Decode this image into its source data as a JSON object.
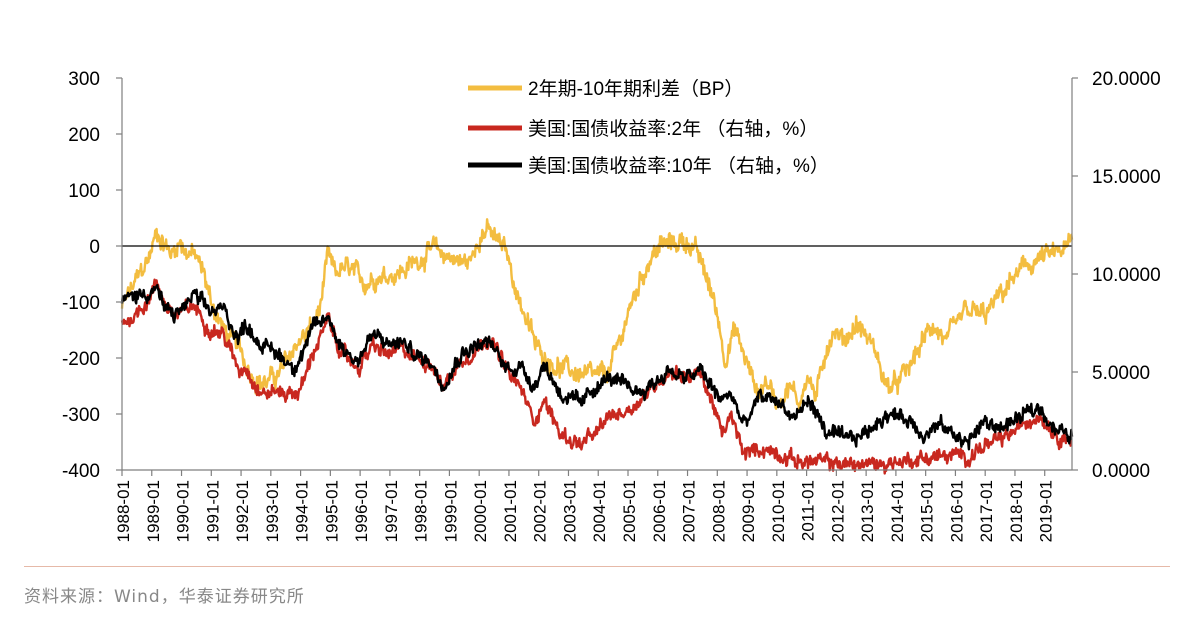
{
  "colors": {
    "spread": "#f3bd40",
    "us2y": "#c8281f",
    "us10y": "#000000",
    "axis": "#7f7f7f",
    "rule": "#e6b9a8",
    "source": "#888888"
  },
  "chart_data": {
    "type": "line",
    "title": "",
    "xlabel": "",
    "ylabel_left": "",
    "ylabel_right": "",
    "grid": false,
    "legend_position": "top-center",
    "x_tick_labels": [
      "1988-01",
      "1989-01",
      "1990-01",
      "1991-01",
      "1992-01",
      "1993-01",
      "1994-01",
      "1995-01",
      "1996-01",
      "1997-01",
      "1998-01",
      "1999-01",
      "2000-01",
      "2001-01",
      "2002-01",
      "2003-01",
      "2004-01",
      "2005-01",
      "2006-01",
      "2007-01",
      "2008-01",
      "2009-01",
      "2010-01",
      "2011-01",
      "2012-01",
      "2013-01",
      "2014-01",
      "2015-01",
      "2016-01",
      "2017-01",
      "2018-01",
      "2019-01"
    ],
    "xlim": [
      "1988-01",
      "2019-12"
    ],
    "left_axis": {
      "ylim": [
        -400,
        300
      ],
      "tick_labels": [
        "300",
        "200",
        "100",
        "0",
        "-100",
        "-200",
        "-300",
        "-400"
      ],
      "tick_values": [
        300,
        200,
        100,
        0,
        -100,
        -200,
        -300,
        -400
      ]
    },
    "right_axis": {
      "ylim": [
        0,
        20
      ],
      "tick_labels": [
        "20.0000",
        "15.0000",
        "10.0000",
        "5.0000",
        "0.0000"
      ],
      "tick_values": [
        20,
        15,
        10,
        5,
        0
      ]
    },
    "series": [
      {
        "name": "2年期-10年期利差（BP）",
        "axis": "left",
        "color": "#f3bd40",
        "points": [
          [
            "1988-01",
            -110
          ],
          [
            "1988-07",
            -60
          ],
          [
            "1988-12",
            -20
          ],
          [
            "1989-03",
            25
          ],
          [
            "1989-06",
            5
          ],
          [
            "1989-09",
            -15
          ],
          [
            "1989-12",
            10
          ],
          [
            "1990-03",
            -10
          ],
          [
            "1990-06",
            -15
          ],
          [
            "1990-10",
            -50
          ],
          [
            "1991-01",
            -100
          ],
          [
            "1991-06",
            -150
          ],
          [
            "1991-12",
            -180
          ],
          [
            "1992-04",
            -220
          ],
          [
            "1992-08",
            -240
          ],
          [
            "1992-11",
            -245
          ],
          [
            "1993-02",
            -235
          ],
          [
            "1993-05",
            -225
          ],
          [
            "1993-08",
            -200
          ],
          [
            "1993-12",
            -170
          ],
          [
            "1994-03",
            -160
          ],
          [
            "1994-06",
            -140
          ],
          [
            "1994-09",
            -110
          ],
          [
            "1994-12",
            -20
          ],
          [
            "1995-03",
            -50
          ],
          [
            "1995-06",
            -40
          ],
          [
            "1995-10",
            -45
          ],
          [
            "1996-01",
            -60
          ],
          [
            "1996-03",
            -65
          ],
          [
            "1996-07",
            -55
          ],
          [
            "1996-12",
            -50
          ],
          [
            "1997-06",
            -45
          ],
          [
            "1997-12",
            -25
          ],
          [
            "1998-06",
            -5
          ],
          [
            "1998-10",
            -15
          ],
          [
            "1999-02",
            -20
          ],
          [
            "1999-06",
            -30
          ],
          [
            "1999-10",
            -25
          ],
          [
            "2000-01",
            20
          ],
          [
            "2000-04",
            30
          ],
          [
            "2000-08",
            10
          ],
          [
            "2000-12",
            -10
          ],
          [
            "2001-04",
            -80
          ],
          [
            "2001-08",
            -130
          ],
          [
            "2001-12",
            -180
          ],
          [
            "2002-04",
            -200
          ],
          [
            "2002-09",
            -215
          ],
          [
            "2003-03",
            -225
          ],
          [
            "2003-08",
            -230
          ],
          [
            "2003-12",
            -235
          ],
          [
            "2004-05",
            -225
          ],
          [
            "2004-09",
            -180
          ],
          [
            "2005-01",
            -120
          ],
          [
            "2005-06",
            -60
          ],
          [
            "2005-10",
            -20
          ],
          [
            "2006-02",
            0
          ],
          [
            "2006-08",
            5
          ],
          [
            "2006-12",
            10
          ],
          [
            "2007-04",
            -5
          ],
          [
            "2007-09",
            -60
          ],
          [
            "2008-01",
            -120
          ],
          [
            "2008-04",
            -200
          ],
          [
            "2008-08",
            -150
          ],
          [
            "2009-01",
            -210
          ],
          [
            "2009-05",
            -260
          ],
          [
            "2009-09",
            -240
          ],
          [
            "2010-01",
            -280
          ],
          [
            "2010-06",
            -250
          ],
          [
            "2010-10",
            -280
          ],
          [
            "2011-01",
            -230
          ],
          [
            "2011-05",
            -270
          ],
          [
            "2011-09",
            -180
          ],
          [
            "2011-12",
            -150
          ],
          [
            "2012-04",
            -170
          ],
          [
            "2012-09",
            -140
          ],
          [
            "2013-01",
            -160
          ],
          [
            "2013-05",
            -190
          ],
          [
            "2013-09",
            -250
          ],
          [
            "2014-01",
            -250
          ],
          [
            "2014-06",
            -220
          ],
          [
            "2014-12",
            -170
          ],
          [
            "2015-04",
            -140
          ],
          [
            "2015-09",
            -170
          ],
          [
            "2016-01",
            -150
          ],
          [
            "2016-05",
            -115
          ],
          [
            "2016-09",
            -120
          ],
          [
            "2017-01",
            -125
          ],
          [
            "2017-06",
            -95
          ],
          [
            "2017-12",
            -60
          ],
          [
            "2018-06",
            -35
          ],
          [
            "2018-12",
            -20
          ],
          [
            "2019-06",
            -15
          ],
          [
            "2019-12",
            5
          ]
        ]
      },
      {
        "name": "美国:国债收益率:2年 （右轴，%）",
        "axis": "right",
        "color": "#c8281f",
        "points": [
          [
            "1988-01",
            7.5
          ],
          [
            "1988-06",
            7.9
          ],
          [
            "1988-12",
            8.8
          ],
          [
            "1989-03",
            9.5
          ],
          [
            "1989-06",
            8.6
          ],
          [
            "1989-10",
            7.9
          ],
          [
            "1990-01",
            8.0
          ],
          [
            "1990-06",
            8.4
          ],
          [
            "1990-12",
            7.3
          ],
          [
            "1991-06",
            6.9
          ],
          [
            "1991-12",
            5.1
          ],
          [
            "1992-03",
            5.3
          ],
          [
            "1992-09",
            3.9
          ],
          [
            "1993-03",
            4.0
          ],
          [
            "1993-10",
            3.9
          ],
          [
            "1994-01",
            4.1
          ],
          [
            "1994-06",
            6.0
          ],
          [
            "1994-12",
            7.6
          ],
          [
            "1995-06",
            5.9
          ],
          [
            "1995-12",
            5.2
          ],
          [
            "1996-06",
            6.3
          ],
          [
            "1996-12",
            5.9
          ],
          [
            "1997-06",
            6.1
          ],
          [
            "1997-12",
            5.7
          ],
          [
            "1998-06",
            5.5
          ],
          [
            "1998-10",
            4.2
          ],
          [
            "1999-06",
            5.6
          ],
          [
            "1999-12",
            6.2
          ],
          [
            "2000-05",
            6.9
          ],
          [
            "2000-12",
            5.1
          ],
          [
            "2001-06",
            4.1
          ],
          [
            "2001-11",
            2.5
          ],
          [
            "2002-03",
            3.6
          ],
          [
            "2002-10",
            1.8
          ],
          [
            "2003-06",
            1.3
          ],
          [
            "2003-12",
            1.8
          ],
          [
            "2004-06",
            2.8
          ],
          [
            "2004-12",
            3.0
          ],
          [
            "2005-06",
            3.6
          ],
          [
            "2005-12",
            4.4
          ],
          [
            "2006-06",
            5.1
          ],
          [
            "2006-12",
            4.8
          ],
          [
            "2007-06",
            4.9
          ],
          [
            "2007-12",
            3.2
          ],
          [
            "2008-03",
            1.6
          ],
          [
            "2008-06",
            2.8
          ],
          [
            "2008-12",
            0.8
          ],
          [
            "2009-06",
            1.1
          ],
          [
            "2010-01",
            0.9
          ],
          [
            "2010-08",
            0.5
          ],
          [
            "2011-06",
            0.4
          ],
          [
            "2012-06",
            0.3
          ],
          [
            "2013-06",
            0.3
          ],
          [
            "2014-06",
            0.5
          ],
          [
            "2015-06",
            0.7
          ],
          [
            "2016-06",
            0.7
          ],
          [
            "2016-12",
            1.2
          ],
          [
            "2017-06",
            1.4
          ],
          [
            "2017-12",
            1.9
          ],
          [
            "2018-06",
            2.5
          ],
          [
            "2018-11",
            2.9
          ],
          [
            "2019-06",
            1.8
          ],
          [
            "2019-12",
            1.6
          ]
        ]
      },
      {
        "name": "美国:国债收益率:10年 （右轴，%）",
        "axis": "right",
        "color": "#000000",
        "points": [
          [
            "1988-01",
            8.6
          ],
          [
            "1988-06",
            8.9
          ],
          [
            "1988-12",
            9.1
          ],
          [
            "1989-03",
            9.3
          ],
          [
            "1989-06",
            8.2
          ],
          [
            "1989-10",
            7.9
          ],
          [
            "1990-01",
            8.2
          ],
          [
            "1990-06",
            8.9
          ],
          [
            "1990-12",
            8.1
          ],
          [
            "1991-06",
            8.2
          ],
          [
            "1991-12",
            6.7
          ],
          [
            "1992-03",
            7.5
          ],
          [
            "1992-09",
            6.4
          ],
          [
            "1993-03",
            6.0
          ],
          [
            "1993-10",
            5.3
          ],
          [
            "1994-01",
            5.8
          ],
          [
            "1994-06",
            7.2
          ],
          [
            "1994-12",
            7.8
          ],
          [
            "1995-06",
            6.2
          ],
          [
            "1995-12",
            5.6
          ],
          [
            "1996-06",
            6.9
          ],
          [
            "1996-12",
            6.4
          ],
          [
            "1997-06",
            6.5
          ],
          [
            "1997-12",
            5.8
          ],
          [
            "1998-06",
            5.5
          ],
          [
            "1998-10",
            4.4
          ],
          [
            "1999-06",
            6.0
          ],
          [
            "1999-12",
            6.4
          ],
          [
            "2000-05",
            6.5
          ],
          [
            "2000-12",
            5.2
          ],
          [
            "2001-06",
            5.3
          ],
          [
            "2001-11",
            4.3
          ],
          [
            "2002-03",
            5.4
          ],
          [
            "2002-10",
            3.9
          ],
          [
            "2003-06",
            3.3
          ],
          [
            "2003-12",
            4.3
          ],
          [
            "2004-06",
            4.7
          ],
          [
            "2004-12",
            4.2
          ],
          [
            "2005-06",
            4.0
          ],
          [
            "2005-12",
            4.5
          ],
          [
            "2006-06",
            5.1
          ],
          [
            "2006-12",
            4.6
          ],
          [
            "2007-06",
            5.1
          ],
          [
            "2007-12",
            4.0
          ],
          [
            "2008-03",
            3.5
          ],
          [
            "2008-06",
            4.0
          ],
          [
            "2008-12",
            2.2
          ],
          [
            "2009-06",
            3.7
          ],
          [
            "2010-01",
            3.6
          ],
          [
            "2010-08",
            2.6
          ],
          [
            "2011-02",
            3.6
          ],
          [
            "2011-09",
            1.9
          ],
          [
            "2012-06",
            1.5
          ],
          [
            "2013-01",
            1.9
          ],
          [
            "2013-09",
            2.9
          ],
          [
            "2014-06",
            2.6
          ],
          [
            "2015-01",
            1.8
          ],
          [
            "2015-06",
            2.3
          ],
          [
            "2016-06",
            1.4
          ],
          [
            "2016-12",
            2.4
          ],
          [
            "2017-06",
            2.2
          ],
          [
            "2017-12",
            2.4
          ],
          [
            "2018-06",
            2.9
          ],
          [
            "2018-11",
            3.2
          ],
          [
            "2019-06",
            2.0
          ],
          [
            "2019-12",
            1.7
          ]
        ]
      }
    ]
  },
  "source_text": "资料来源：Wind，华泰证券研究所"
}
